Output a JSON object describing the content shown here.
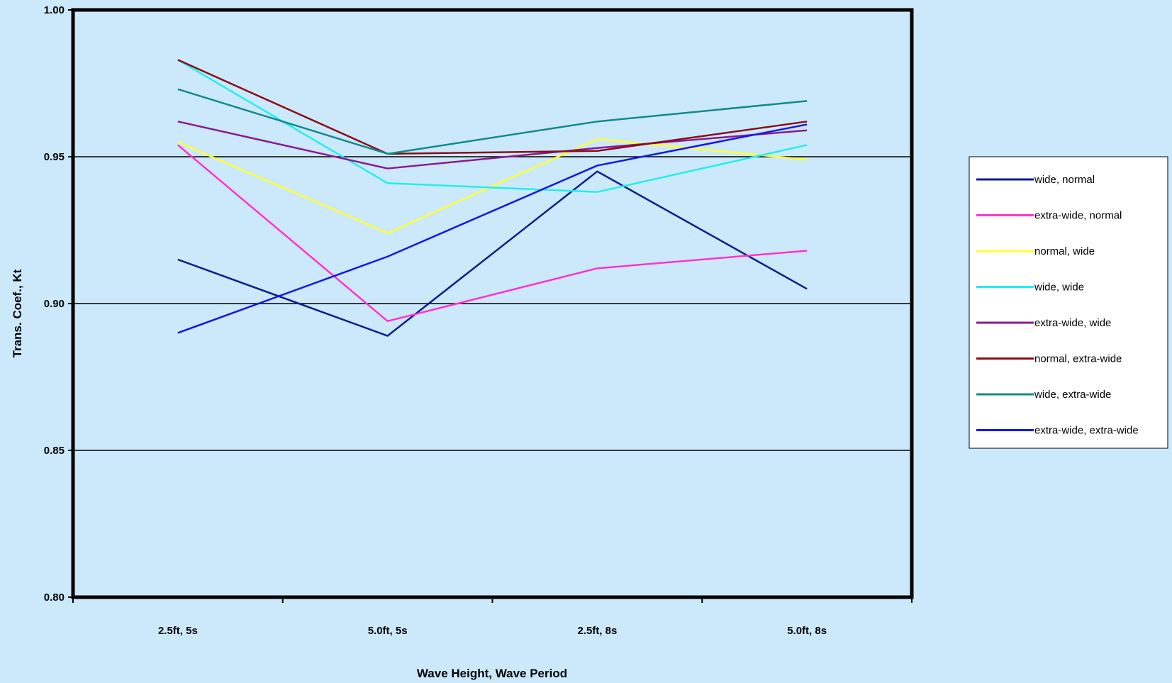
{
  "chart_data": {
    "type": "line",
    "categories": [
      "2.5ft, 5s",
      "5.0ft, 5s",
      "2.5ft, 8s",
      "5.0ft, 8s"
    ],
    "xlabel": "Wave Height, Wave Period",
    "ylabel": "Trans. Coef., Kt",
    "ylim": [
      0.8,
      1.0
    ],
    "yticks": [
      0.8,
      0.85,
      0.9,
      0.95,
      1.0
    ],
    "ytick_labels": [
      "0.80",
      "0.85",
      "0.90",
      "0.95",
      "1.00"
    ],
    "grid": "horizontal",
    "legend_position": "right",
    "series": [
      {
        "name": "wide, normal",
        "color": "#0b1f8c",
        "values": [
          0.915,
          0.889,
          0.945,
          0.905
        ]
      },
      {
        "name": "extra-wide, normal",
        "color": "#ff33cc",
        "values": [
          0.954,
          0.894,
          0.912,
          0.918
        ]
      },
      {
        "name": "normal, wide",
        "color": "#ffff33",
        "values": [
          0.955,
          0.924,
          0.956,
          0.949
        ]
      },
      {
        "name": "wide, wide",
        "color": "#22eeee",
        "values": [
          0.983,
          0.941,
          0.938,
          0.954
        ]
      },
      {
        "name": "extra-wide, wide",
        "color": "#8a1a90",
        "values": [
          0.962,
          0.946,
          0.953,
          0.959
        ]
      },
      {
        "name": "normal, extra-wide",
        "color": "#8b0c18",
        "values": [
          0.983,
          0.951,
          0.952,
          0.962
        ]
      },
      {
        "name": "wide, extra-wide",
        "color": "#138a8a",
        "values": [
          0.973,
          0.951,
          0.962,
          0.969
        ]
      },
      {
        "name": "extra-wide, extra-wide",
        "color": "#1515ee",
        "values": [
          0.89,
          0.916,
          0.947,
          0.961
        ]
      }
    ]
  }
}
